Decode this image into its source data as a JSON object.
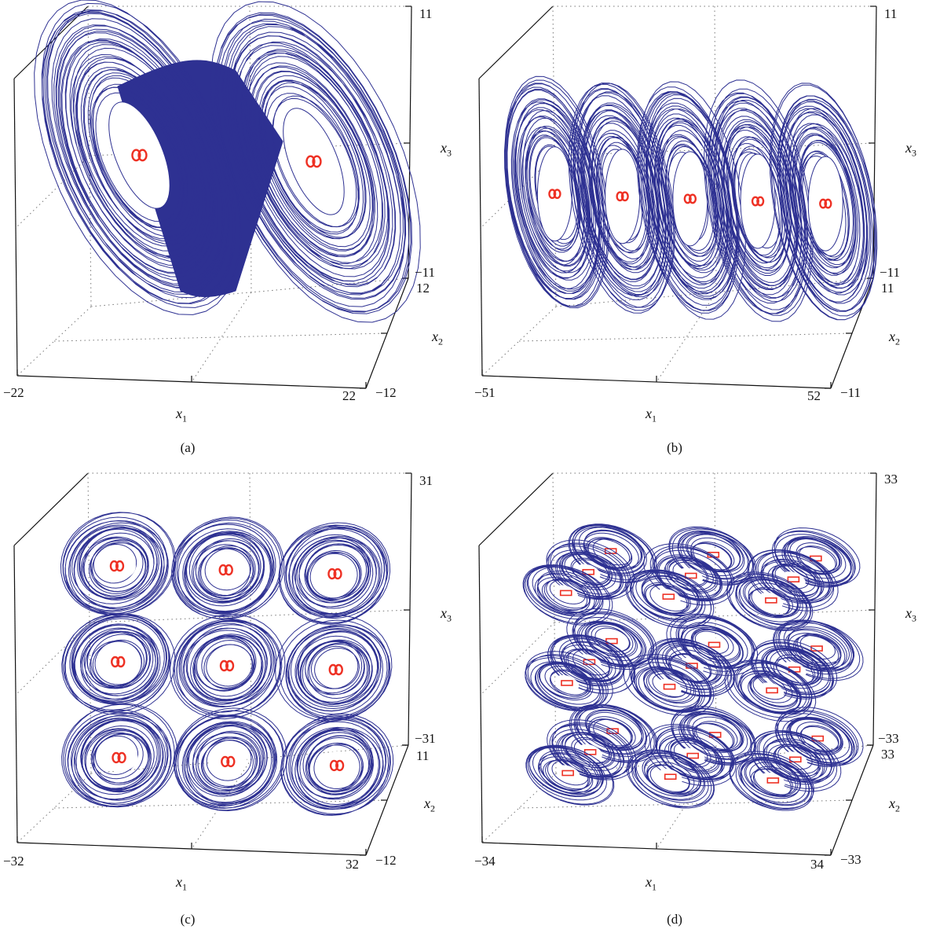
{
  "chart_data": [
    {
      "type": "scatter",
      "panel": "(a)",
      "x1_ticks": [
        "−22",
        "22"
      ],
      "x2_ticks": [
        "12",
        "−12"
      ],
      "x3_ticks": [
        "11",
        "−11"
      ],
      "xlim": [
        -22,
        22
      ],
      "ylim": [
        -12,
        12
      ],
      "zlim": [
        -11,
        11
      ],
      "xlabel": "x",
      "ylabel": "x",
      "zlabel": "x",
      "scrolls": [
        {
          "x1": -11,
          "x3": 3
        },
        {
          "x1": 11,
          "x3": 3
        }
      ],
      "colors": {
        "attractor": "#2e3192",
        "equilibrium": "#ee3124"
      }
    },
    {
      "type": "scatter",
      "panel": "(b)",
      "x1_ticks": [
        "−51",
        "52"
      ],
      "x2_ticks": [
        "11",
        "−11"
      ],
      "x3_ticks": [
        "11",
        "−11"
      ],
      "xlim": [
        -51,
        52
      ],
      "ylim": [
        -11,
        11
      ],
      "zlim": [
        -11,
        11
      ],
      "xlabel": "x",
      "ylabel": "x",
      "zlabel": "x",
      "scrolls": [
        {
          "x1": -40,
          "x3": 0
        },
        {
          "x1": -20,
          "x3": 0
        },
        {
          "x1": 0,
          "x3": 0
        },
        {
          "x1": 20,
          "x3": 0
        },
        {
          "x1": 40,
          "x3": 0
        }
      ],
      "colors": {
        "attractor": "#2e3192",
        "equilibrium": "#ee3124"
      }
    },
    {
      "type": "scatter",
      "panel": "(c)",
      "x1_ticks": [
        "−32",
        "32"
      ],
      "x2_ticks": [
        "11",
        "−12"
      ],
      "x3_ticks": [
        "31",
        "−31"
      ],
      "xlim": [
        -32,
        32
      ],
      "ylim": [
        -12,
        11
      ],
      "zlim": [
        -31,
        31
      ],
      "xlabel": "x",
      "ylabel": "x",
      "zlabel": "x",
      "scrolls": [
        {
          "x1": -20,
          "x3": 20
        },
        {
          "x1": 0,
          "x3": 20
        },
        {
          "x1": 20,
          "x3": 20
        },
        {
          "x1": -20,
          "x3": 0
        },
        {
          "x1": 0,
          "x3": 0
        },
        {
          "x1": 20,
          "x3": 0
        },
        {
          "x1": -20,
          "x3": -20
        },
        {
          "x1": 0,
          "x3": -20
        },
        {
          "x1": 20,
          "x3": -20
        }
      ],
      "colors": {
        "attractor": "#2e3192",
        "equilibrium": "#ee3124"
      }
    },
    {
      "type": "scatter",
      "panel": "(d)",
      "x1_ticks": [
        "−34",
        "34"
      ],
      "x2_ticks": [
        "33",
        "−33"
      ],
      "x3_ticks": [
        "33",
        "−33"
      ],
      "xlim": [
        -34,
        34
      ],
      "ylim": [
        -33,
        33
      ],
      "zlim": [
        -33,
        33
      ],
      "xlabel": "x",
      "ylabel": "x",
      "zlabel": "x",
      "scrolls_grid": {
        "x1": [
          -20,
          0,
          20
        ],
        "x2": [
          -20,
          0,
          20
        ],
        "x3": [
          -20,
          0,
          20
        ]
      },
      "colors": {
        "attractor": "#2e3192",
        "equilibrium": "#ee3124"
      }
    }
  ]
}
